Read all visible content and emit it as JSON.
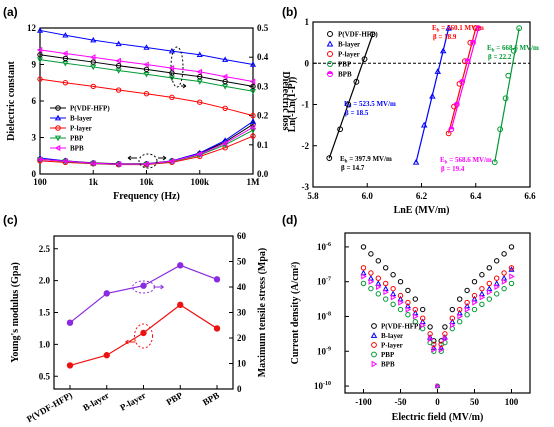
{
  "chart_data": [
    {
      "panel": "(a)",
      "type": "line",
      "xlabel": "Frequency (Hz)",
      "ylabel": "Dielectric constant",
      "y2label": "Dielectric loss",
      "x_scale": "log",
      "xlim": [
        100,
        1000000
      ],
      "ylim": [
        0,
        12
      ],
      "y2lim": [
        0.0,
        0.5
      ],
      "x_ticks": [
        "100",
        "1k",
        "10k",
        "100k",
        "1M"
      ],
      "y_ticks": [
        "0",
        "3",
        "6",
        "9",
        "12"
      ],
      "y2_ticks": [
        "0.0",
        "0.1",
        "0.2",
        "0.3",
        "0.4",
        "0.5"
      ],
      "x": [
        100,
        300,
        1000,
        3000,
        10000,
        30000,
        100000,
        300000,
        1000000
      ],
      "series": [
        {
          "name": "P(VDF-HFP)",
          "color": "#000000",
          "marker": "circle",
          "constant": [
            9.8,
            9.5,
            9.2,
            8.9,
            8.6,
            8.3,
            8.0,
            7.6,
            7.2
          ],
          "loss": [
            0.05,
            0.045,
            0.038,
            0.035,
            0.035,
            0.045,
            0.07,
            0.11,
            0.17
          ]
        },
        {
          "name": "B-layer",
          "color": "#0000ff",
          "marker": "triangle-up",
          "constant": [
            11.8,
            11.4,
            11.0,
            10.7,
            10.4,
            10.1,
            9.8,
            9.4,
            9.0
          ],
          "loss": [
            0.055,
            0.045,
            0.037,
            0.034,
            0.034,
            0.045,
            0.072,
            0.115,
            0.18
          ]
        },
        {
          "name": "P-layer",
          "color": "#ff0000",
          "marker": "circle",
          "constant": [
            7.8,
            7.5,
            7.2,
            6.9,
            6.6,
            6.3,
            5.9,
            5.4,
            4.8
          ],
          "loss": [
            0.045,
            0.04,
            0.035,
            0.032,
            0.032,
            0.04,
            0.06,
            0.09,
            0.13
          ]
        },
        {
          "name": "PBP",
          "color": "#009933",
          "marker": "triangle-down",
          "constant": [
            9.4,
            9.1,
            8.8,
            8.5,
            8.2,
            7.9,
            7.6,
            7.2,
            6.8
          ],
          "loss": [
            0.05,
            0.043,
            0.036,
            0.033,
            0.033,
            0.043,
            0.065,
            0.1,
            0.15
          ]
        },
        {
          "name": "BPB",
          "color": "#ff00ff",
          "marker": "triangle-left",
          "constant": [
            10.2,
            9.9,
            9.6,
            9.3,
            9.0,
            8.7,
            8.4,
            8.0,
            7.6
          ],
          "loss": [
            0.05,
            0.044,
            0.037,
            0.034,
            0.034,
            0.044,
            0.068,
            0.105,
            0.16
          ]
        }
      ]
    },
    {
      "panel": "(b)",
      "type": "scatter",
      "xlabel": "LnE (MV/m)",
      "ylabel": "Ln(-Ln(1-P))",
      "xlim": [
        5.8,
        6.6
      ],
      "ylim": [
        -3,
        1
      ],
      "x_ticks": [
        "5.8",
        "6.0",
        "6.2",
        "6.4",
        "6.6"
      ],
      "y_ticks": [
        "-3",
        "-2",
        "-1",
        "0",
        "1"
      ],
      "series": [
        {
          "name": "P(VDF-HFP)",
          "color": "#000000",
          "marker": "circle",
          "points": [
            [
              5.86,
              -2.3
            ],
            [
              5.9,
              -1.6
            ],
            [
              5.93,
              -1.0
            ],
            [
              5.96,
              -0.45
            ],
            [
              5.99,
              0.1
            ],
            [
              6.02,
              0.7
            ]
          ],
          "Eb": "397.9 MV/m",
          "beta": "14.7"
        },
        {
          "name": "B-layer",
          "color": "#0000ff",
          "marker": "triangle-up",
          "points": [
            [
              6.18,
              -2.4
            ],
            [
              6.21,
              -1.5
            ],
            [
              6.24,
              -0.8
            ],
            [
              6.26,
              -0.2
            ],
            [
              6.28,
              0.3
            ],
            [
              6.3,
              0.85
            ]
          ],
          "Eb": "523.5 MV/m",
          "beta": "18.5"
        },
        {
          "name": "P-layer",
          "color": "#ff0000",
          "marker": "circle",
          "points": [
            [
              6.3,
              -1.7
            ],
            [
              6.32,
              -1.05
            ],
            [
              6.34,
              -0.5
            ],
            [
              6.36,
              0.05
            ],
            [
              6.38,
              0.5
            ],
            [
              6.4,
              0.85
            ]
          ],
          "Eb": "560.1 MV/m",
          "beta": "18.9"
        },
        {
          "name": "PBP",
          "color": "#009933",
          "marker": "circle",
          "points": [
            [
              6.47,
              -2.4
            ],
            [
              6.49,
              -1.6
            ],
            [
              6.51,
              -0.85
            ],
            [
              6.52,
              -0.3
            ],
            [
              6.54,
              0.3
            ],
            [
              6.56,
              0.85
            ]
          ],
          "Eb": "668.6 MV/m",
          "beta": "22.2"
        },
        {
          "name": "BPB",
          "color": "#ff00ff",
          "marker": "half-circle",
          "points": [
            [
              6.31,
              -1.6
            ],
            [
              6.33,
              -1.0
            ],
            [
              6.35,
              -0.45
            ],
            [
              6.37,
              0.05
            ],
            [
              6.39,
              0.5
            ],
            [
              6.41,
              0.85
            ]
          ],
          "Eb": "568.6 MV/m",
          "beta": "19.4"
        }
      ]
    },
    {
      "panel": "(c)",
      "type": "line",
      "categories": [
        "P(VDF-HFP)",
        "B-layer",
        "P-layer",
        "PBP",
        "BPB"
      ],
      "ylabel": "Young's modulus (Gpa)",
      "y2label": "Maximum tensile stress (Mpa)",
      "ylim": [
        0.3,
        2.7
      ],
      "y2lim": [
        0,
        60
      ],
      "y_ticks": [
        "0.5",
        "1.0",
        "1.5",
        "2.0",
        "2.5"
      ],
      "y2_ticks": [
        "0",
        "10",
        "20",
        "30",
        "40",
        "50",
        "60"
      ],
      "series": [
        {
          "name": "Young's modulus",
          "axis": "left",
          "color": "#ee1111",
          "values": [
            0.67,
            0.83,
            1.18,
            1.62,
            1.25
          ]
        },
        {
          "name": "Maximum tensile stress",
          "axis": "right",
          "color": "#8a2be2",
          "values": [
            26,
            37.5,
            40.5,
            48.5,
            43
          ]
        }
      ]
    },
    {
      "panel": "(d)",
      "type": "scatter",
      "xlabel": "Electric field (MV/m)",
      "ylabel": "Current density (A/cm²)",
      "y_scale": "log",
      "xlim": [
        -125,
        125
      ],
      "ylim_exp": [
        -10.2,
        -5.6
      ],
      "x_ticks": [
        "-100",
        "-50",
        "0",
        "50",
        "100"
      ],
      "y_ticks": [
        "10-10",
        "10-9",
        "10-8",
        "10-7",
        "10-6"
      ],
      "x": [
        -100,
        -90,
        -80,
        -70,
        -60,
        -50,
        -40,
        -30,
        -20,
        -10,
        -5,
        0,
        5,
        10,
        20,
        30,
        40,
        50,
        60,
        70,
        80,
        90,
        100
      ],
      "series": [
        {
          "name": "P(VDF-HFP)",
          "color": "#000000",
          "marker": "circle",
          "log10_values": [
            -6.0,
            -6.2,
            -6.4,
            -6.6,
            -6.8,
            -7.0,
            -7.25,
            -7.5,
            -7.8,
            -8.3,
            -8.7,
            -9.1,
            -8.7,
            -8.3,
            -7.8,
            -7.5,
            -7.25,
            -7.0,
            -6.8,
            -6.6,
            -6.4,
            -6.2,
            -6.0
          ]
        },
        {
          "name": "B-layer",
          "color": "#0000ff",
          "marker": "triangle-up",
          "log10_values": [
            -6.75,
            -6.9,
            -7.05,
            -7.2,
            -7.35,
            -7.5,
            -7.7,
            -7.9,
            -8.15,
            -8.6,
            -8.9,
            -9.2,
            -8.9,
            -8.6,
            -8.15,
            -7.9,
            -7.7,
            -7.5,
            -7.35,
            -7.2,
            -7.05,
            -6.9,
            -6.65
          ]
        },
        {
          "name": "P-layer",
          "color": "#ff0000",
          "marker": "circle",
          "log10_values": [
            -6.6,
            -6.75,
            -6.9,
            -7.05,
            -7.2,
            -7.4,
            -7.6,
            -7.8,
            -8.05,
            -8.5,
            -8.8,
            -9.1,
            -8.8,
            -8.5,
            -8.05,
            -7.8,
            -7.6,
            -7.4,
            -7.2,
            -7.05,
            -6.9,
            -6.75,
            -6.6
          ]
        },
        {
          "name": "PBP",
          "color": "#009933",
          "marker": "circle",
          "log10_values": [
            -7.05,
            -7.2,
            -7.35,
            -7.5,
            -7.65,
            -7.8,
            -7.95,
            -8.15,
            -8.35,
            -8.75,
            -9.0,
            -9.3,
            -9.0,
            -8.75,
            -8.35,
            -8.15,
            -7.95,
            -7.8,
            -7.65,
            -7.5,
            -7.35,
            -7.2,
            -7.05
          ]
        },
        {
          "name": "BPB",
          "color": "#ff00ff",
          "marker": "triangle-right",
          "log10_values": [
            -6.85,
            -7.0,
            -7.15,
            -7.3,
            -7.45,
            -7.6,
            -7.8,
            -8.0,
            -8.25,
            -8.65,
            -8.95,
            -9.25,
            -8.95,
            -8.65,
            -8.25,
            -8.0,
            -7.8,
            -7.6,
            -7.45,
            -7.3,
            -7.15,
            -7.0,
            -6.85
          ]
        }
      ]
    }
  ]
}
